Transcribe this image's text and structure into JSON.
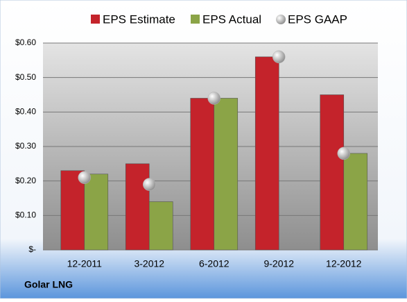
{
  "chart_data": {
    "type": "bar",
    "categories": [
      "12-2011",
      "3-2012",
      "6-2012",
      "9-2012",
      "12-2012"
    ],
    "series": [
      {
        "name": "EPS Estimate",
        "type": "bar",
        "color": "#c4232b",
        "values": [
          0.23,
          0.25,
          0.44,
          0.56,
          0.45
        ]
      },
      {
        "name": "EPS Actual",
        "type": "bar",
        "color": "#8ba447",
        "values": [
          0.22,
          0.14,
          0.44,
          null,
          0.28
        ]
      },
      {
        "name": "EPS GAAP",
        "type": "scatter",
        "color": "#b4b4b4",
        "values": [
          0.21,
          0.19,
          0.44,
          0.56,
          0.28
        ]
      }
    ],
    "ylim": [
      0,
      0.6
    ],
    "yticks": [
      {
        "value": 0,
        "label": "$-"
      },
      {
        "value": 0.1,
        "label": "$0.10"
      },
      {
        "value": 0.2,
        "label": "$0.20"
      },
      {
        "value": 0.3,
        "label": "$0.30"
      },
      {
        "value": 0.4,
        "label": "$0.40"
      },
      {
        "value": 0.5,
        "label": "$0.50"
      },
      {
        "value": 0.6,
        "label": "$0.60"
      }
    ],
    "grid": true,
    "legend": "top",
    "footer": "Golar LNG"
  }
}
